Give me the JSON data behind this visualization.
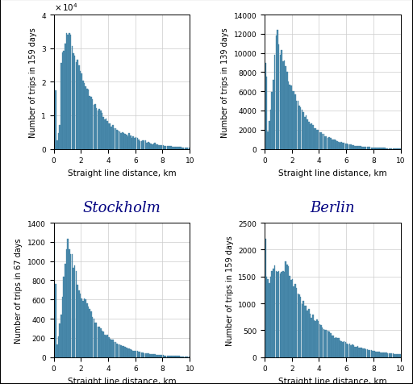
{
  "subplots": [
    {
      "city": "Stockholm",
      "ylabel": "Number of trips in 159 days",
      "xlabel": "Straight line distance, km",
      "ylim": [
        0,
        40000
      ],
      "yticks": [
        0,
        10000,
        20000,
        30000,
        40000
      ],
      "ytick_labels": [
        "0",
        "1",
        "2",
        "3",
        "4"
      ],
      "show_x10": true,
      "peak": 36500,
      "peak_bin": 1.1
    },
    {
      "city": "Berlin",
      "ylabel": "Number of trips in 139 days",
      "xlabel": "Straight line distance, km",
      "ylim": [
        0,
        14000
      ],
      "yticks": [
        0,
        2000,
        4000,
        6000,
        8000,
        10000,
        12000,
        14000
      ],
      "ytick_labels": [
        "0",
        "2000",
        "4000",
        "6000",
        "8000",
        "10000",
        "12000",
        "14000"
      ],
      "show_x10": false,
      "peak": 12700,
      "peak_bin": 0.9
    },
    {
      "city": "",
      "ylabel": "Number of trips in 67 days",
      "xlabel": "Straight line distance, km",
      "ylim": [
        0,
        1400
      ],
      "yticks": [
        0,
        200,
        400,
        600,
        800,
        1000,
        1200,
        1400
      ],
      "ytick_labels": [
        "0",
        "200",
        "400",
        "600",
        "800",
        "1000",
        "1200",
        "1400"
      ],
      "show_x10": false,
      "peak": 1300,
      "peak_bin": 1.0
    },
    {
      "city": "",
      "ylabel": "Number of trips in 159 days",
      "xlabel": "Straight line distance, km",
      "ylim": [
        0,
        2500
      ],
      "yticks": [
        0,
        500,
        1000,
        1500,
        2000,
        2500
      ],
      "ytick_labels": [
        "0",
        "500",
        "1000",
        "1500",
        "2000",
        "2500"
      ],
      "show_x10": false,
      "peak": 2200,
      "peak_bin": 0.3
    }
  ],
  "bar_color": "#4C8BAE",
  "bar_edge_color": "#3a7a9c",
  "xlim": [
    0,
    10
  ],
  "xticks": [
    0,
    2,
    4,
    6,
    8,
    10
  ],
  "num_bins": 100,
  "bin_width": 0.1,
  "city_fontsize": 13,
  "city_color": "#000080"
}
